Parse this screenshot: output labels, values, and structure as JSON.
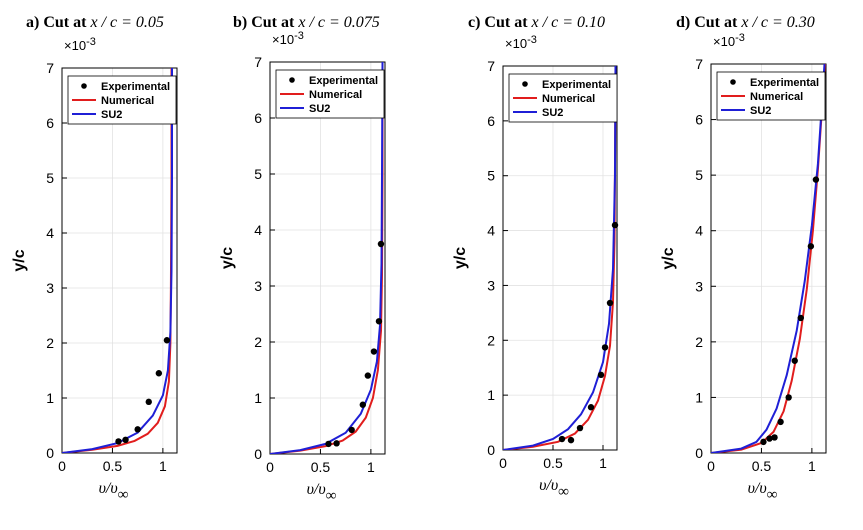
{
  "colors": {
    "experimental": "#000000",
    "numerical": "#e11d1d",
    "su2": "#1f1fd6",
    "grid": "#e2e2e2"
  },
  "chart_data": [
    {
      "type": "scatter+line",
      "title_prefix": "a) Cut at",
      "title_math": "x / c = 0.05",
      "exponent_label": "×10",
      "exponent_power": "-3",
      "ylabel": "y/c",
      "xlabel_main": "υ/υ",
      "xlabel_sub": "∞",
      "xlim": [
        0,
        1.14
      ],
      "ylim": [
        0,
        7
      ],
      "xticks": [
        0,
        0.5,
        1
      ],
      "xtick_labels": [
        "0",
        "0.5",
        "1"
      ],
      "yticks": [
        0,
        1,
        2,
        3,
        4,
        5,
        6,
        7
      ],
      "ytick_labels": [
        "0",
        "1",
        "2",
        "3",
        "4",
        "5",
        "6",
        "7"
      ],
      "legend": [
        "Experimental",
        "Numerical",
        "SU2"
      ],
      "series": [
        {
          "name": "Experimental",
          "kind": "points",
          "x": [
            0.56,
            0.63,
            0.75,
            0.86,
            0.96,
            1.04
          ],
          "y": [
            0.21,
            0.24,
            0.43,
            0.93,
            1.45,
            2.05
          ]
        },
        {
          "name": "Numerical",
          "kind": "line",
          "x": [
            0,
            0.3,
            0.55,
            0.72,
            0.85,
            0.95,
            1.02,
            1.06,
            1.075,
            1.08,
            1.085,
            1.085
          ],
          "y": [
            0,
            0.06,
            0.13,
            0.22,
            0.35,
            0.55,
            0.85,
            1.3,
            2.0,
            3.0,
            5.0,
            7.0
          ]
        },
        {
          "name": "SU2",
          "kind": "line",
          "x": [
            0,
            0.3,
            0.55,
            0.75,
            0.9,
            1.0,
            1.05,
            1.075,
            1.085,
            1.09,
            1.09
          ],
          "y": [
            0,
            0.07,
            0.18,
            0.37,
            0.68,
            1.05,
            1.5,
            2.2,
            3.3,
            5.0,
            7.0
          ]
        }
      ]
    },
    {
      "type": "scatter+line",
      "title_prefix": "b) Cut at",
      "title_math": "x / c = 0.075",
      "exponent_label": "×10",
      "exponent_power": "-3",
      "ylabel": "y/c",
      "xlabel_main": "υ/υ",
      "xlabel_sub": "∞",
      "xlim": [
        0,
        1.14
      ],
      "ylim": [
        0,
        7
      ],
      "xticks": [
        0,
        0.5,
        1
      ],
      "xtick_labels": [
        "0",
        "0.5",
        "1"
      ],
      "yticks": [
        0,
        1,
        2,
        3,
        4,
        5,
        6,
        7
      ],
      "ytick_labels": [
        "0",
        "1",
        "2",
        "3",
        "4",
        "5",
        "6",
        "7"
      ],
      "legend": [
        "Experimental",
        "Numerical",
        "SU2"
      ],
      "series": [
        {
          "name": "Experimental",
          "kind": "points",
          "x": [
            0.58,
            0.66,
            0.81,
            0.92,
            0.97,
            1.03,
            1.08,
            1.1
          ],
          "y": [
            0.18,
            0.19,
            0.43,
            0.88,
            1.4,
            1.83,
            2.37,
            3.75
          ]
        },
        {
          "name": "Numerical",
          "kind": "line",
          "x": [
            0,
            0.3,
            0.55,
            0.72,
            0.85,
            0.95,
            1.02,
            1.07,
            1.1,
            1.11,
            1.115,
            1.115
          ],
          "y": [
            0,
            0.06,
            0.14,
            0.24,
            0.4,
            0.65,
            1.0,
            1.5,
            2.2,
            3.2,
            5.0,
            7.0
          ]
        },
        {
          "name": "SU2",
          "kind": "line",
          "x": [
            0,
            0.3,
            0.55,
            0.75,
            0.9,
            1.0,
            1.06,
            1.09,
            1.105,
            1.11,
            1.115
          ],
          "y": [
            0,
            0.07,
            0.18,
            0.38,
            0.72,
            1.15,
            1.65,
            2.3,
            3.4,
            5.0,
            7.0
          ]
        }
      ]
    },
    {
      "type": "scatter+line",
      "title_prefix": "c) Cut at",
      "title_math": "x / c = 0.10",
      "exponent_label": "×10",
      "exponent_power": "-3",
      "ylabel": "y/c",
      "xlabel_main": "υ/υ",
      "xlabel_sub": "∞",
      "xlim": [
        0,
        1.14
      ],
      "ylim": [
        0,
        7
      ],
      "xticks": [
        0,
        0.5,
        1
      ],
      "xtick_labels": [
        "0",
        "0.5",
        "1"
      ],
      "yticks": [
        0,
        1,
        2,
        3,
        4,
        5,
        6,
        7
      ],
      "ytick_labels": [
        "0",
        "1",
        "2",
        "3",
        "4",
        "5",
        "6",
        "7"
      ],
      "legend": [
        "Experimental",
        "Numerical",
        "SU2"
      ],
      "series": [
        {
          "name": "Experimental",
          "kind": "points",
          "x": [
            0.59,
            0.68,
            0.77,
            0.88,
            0.98,
            1.02,
            1.07,
            1.12
          ],
          "y": [
            0.2,
            0.18,
            0.4,
            0.78,
            1.37,
            1.87,
            2.68,
            4.1
          ]
        },
        {
          "name": "Numerical",
          "kind": "line",
          "x": [
            0,
            0.3,
            0.55,
            0.72,
            0.85,
            0.95,
            1.02,
            1.07,
            1.1,
            1.115,
            1.12,
            1.125
          ],
          "y": [
            0,
            0.06,
            0.15,
            0.3,
            0.55,
            0.9,
            1.35,
            1.9,
            2.7,
            3.8,
            5.2,
            7.0
          ]
        },
        {
          "name": "SU2",
          "kind": "line",
          "x": [
            0,
            0.3,
            0.5,
            0.65,
            0.78,
            0.9,
            1.0,
            1.06,
            1.1,
            1.12,
            1.125
          ],
          "y": [
            0,
            0.08,
            0.2,
            0.38,
            0.65,
            1.05,
            1.6,
            2.3,
            3.3,
            5.0,
            7.0
          ]
        }
      ]
    },
    {
      "type": "scatter+line",
      "title_prefix": "d) Cut at",
      "title_math": "x / c = 0.30",
      "exponent_label": "×10",
      "exponent_power": "-3",
      "ylabel": "y/c",
      "xlabel_main": "υ/υ",
      "xlabel_sub": "∞",
      "xlim": [
        0,
        1.14
      ],
      "ylim": [
        0,
        7
      ],
      "xticks": [
        0,
        0.5,
        1
      ],
      "xtick_labels": [
        "0",
        "0.5",
        "1"
      ],
      "yticks": [
        0,
        1,
        2,
        3,
        4,
        5,
        6,
        7
      ],
      "ytick_labels": [
        "0",
        "1",
        "2",
        "3",
        "4",
        "5",
        "6",
        "7"
      ],
      "legend": [
        "Experimental",
        "Numerical",
        "SU2"
      ],
      "series": [
        {
          "name": "Experimental",
          "kind": "points",
          "x": [
            0.52,
            0.58,
            0.63,
            0.69,
            0.77,
            0.83,
            0.89,
            0.99,
            1.04
          ],
          "y": [
            0.2,
            0.26,
            0.28,
            0.56,
            1.0,
            1.66,
            2.43,
            3.72,
            4.92
          ]
        },
        {
          "name": "Numerical",
          "kind": "line",
          "x": [
            0,
            0.3,
            0.5,
            0.62,
            0.72,
            0.8,
            0.88,
            0.95,
            1.01,
            1.06,
            1.1,
            1.13
          ],
          "y": [
            0,
            0.06,
            0.18,
            0.38,
            0.75,
            1.3,
            2.05,
            2.95,
            4.0,
            5.1,
            6.2,
            7.0
          ]
        },
        {
          "name": "SU2",
          "kind": "line",
          "x": [
            0,
            0.3,
            0.45,
            0.55,
            0.65,
            0.75,
            0.85,
            0.93,
            1.0,
            1.06,
            1.1,
            1.125
          ],
          "y": [
            0,
            0.08,
            0.2,
            0.42,
            0.8,
            1.4,
            2.2,
            3.1,
            4.1,
            5.2,
            6.3,
            7.0
          ]
        }
      ]
    }
  ]
}
